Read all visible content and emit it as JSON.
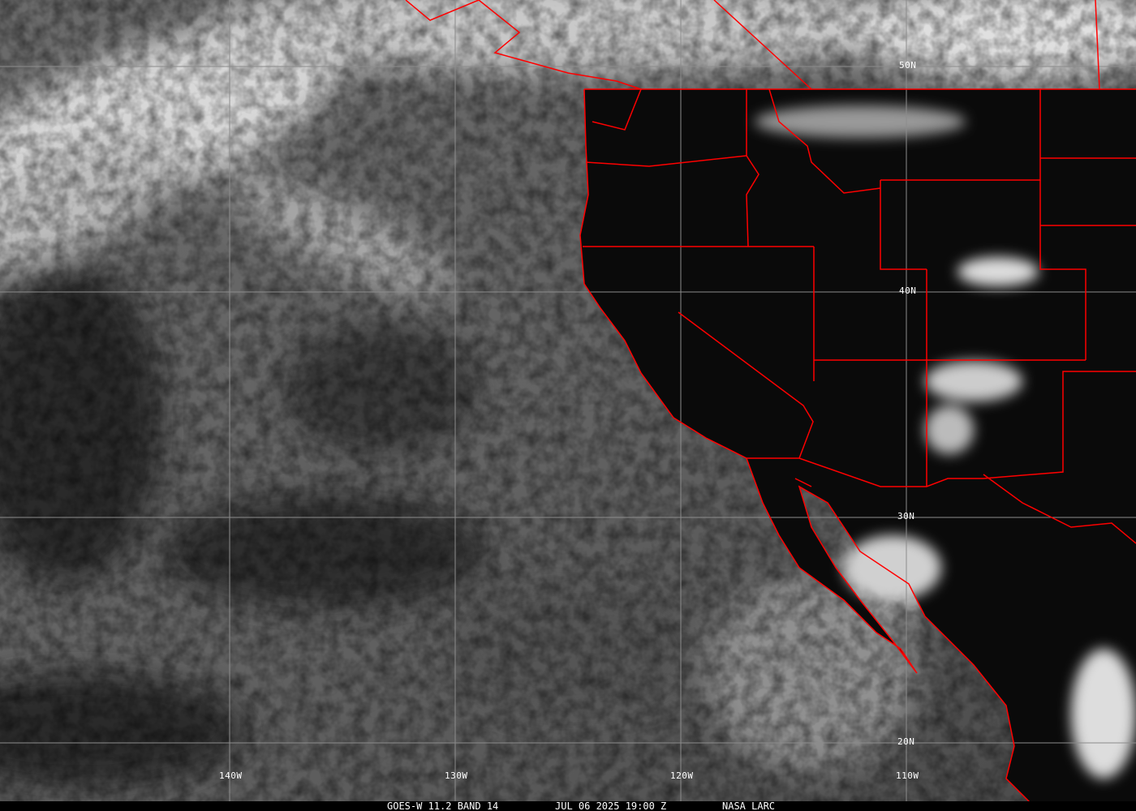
{
  "image": {
    "satellite": "GOES-W",
    "channel": "11.2 BAND 14",
    "caption_left": "GOES-W 11.2 BAND 14",
    "caption_datetime": "JUL 06 2025 19:00 Z",
    "caption_source": "NASA LARC",
    "border_color": "#ff0000",
    "grid_color": "#8c8c8c"
  },
  "grid": {
    "latitudes": [
      "50N",
      "40N",
      "30N",
      "20N"
    ],
    "longitudes": [
      "140W",
      "130W",
      "120W",
      "110W"
    ]
  }
}
